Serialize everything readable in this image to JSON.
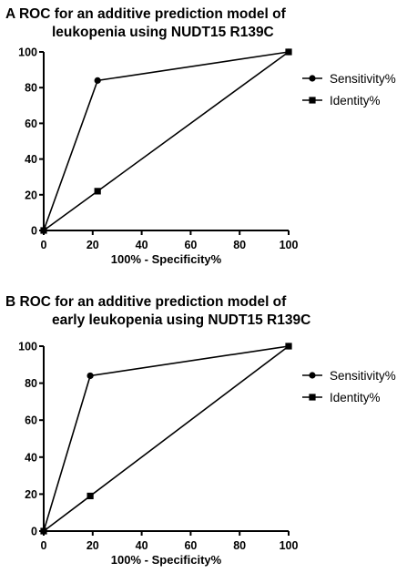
{
  "chart_data": [
    {
      "type": "line",
      "panel_letter": "A",
      "title_line1": "ROC for an additive prediction model of",
      "title_line2": "leukopenia using NUDT15 R139C",
      "xlabel": "100% - Specificity%",
      "ylabel": "",
      "xlim": [
        0,
        100
      ],
      "ylim": [
        0,
        100
      ],
      "xticks": [
        "0",
        "20",
        "40",
        "60",
        "80",
        "100"
      ],
      "yticks": [
        "0",
        "20",
        "40",
        "60",
        "80",
        "100"
      ],
      "legend_position": "right",
      "series": [
        {
          "name": "Sensitivity%",
          "marker": "circle",
          "x": [
            0,
            22,
            100
          ],
          "y": [
            0,
            84,
            100
          ]
        },
        {
          "name": "Identity%",
          "marker": "square",
          "x": [
            0,
            22,
            100
          ],
          "y": [
            0,
            22,
            100
          ]
        }
      ],
      "grid": false
    },
    {
      "type": "line",
      "panel_letter": "B",
      "title_line1": "ROC for an additive prediction model of",
      "title_line2": "early leukopenia using NUDT15 R139C",
      "xlabel": "100% - Specificity%",
      "ylabel": "",
      "xlim": [
        0,
        100
      ],
      "ylim": [
        0,
        100
      ],
      "xticks": [
        "0",
        "20",
        "40",
        "60",
        "80",
        "100"
      ],
      "yticks": [
        "0",
        "20",
        "40",
        "60",
        "80",
        "100"
      ],
      "legend_position": "right",
      "series": [
        {
          "name": "Sensitivity%",
          "marker": "circle",
          "x": [
            0,
            19,
            100
          ],
          "y": [
            0,
            84,
            100
          ]
        },
        {
          "name": "Identity%",
          "marker": "square",
          "x": [
            0,
            19,
            100
          ],
          "y": [
            0,
            19,
            100
          ]
        }
      ],
      "grid": false
    }
  ]
}
